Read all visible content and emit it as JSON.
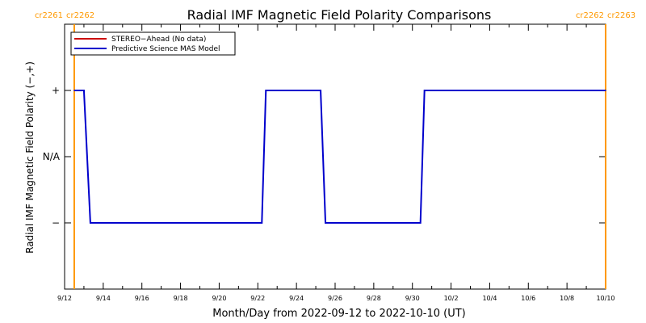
{
  "chart_data": {
    "type": "line",
    "title": "Radial IMF Magnetic Field Polarity Comparisons",
    "xlabel": "Month/Day from 2022-09-12 to 2022-10-10 (UT)",
    "ylabel": "Radial IMF Magnetic Field Polarity (−,+)",
    "xlim": [
      "2022-09-12",
      "2022-10-10"
    ],
    "ylim": [
      -2,
      2
    ],
    "x_ticks": [
      {
        "date": "2022-09-12",
        "label": "9/12"
      },
      {
        "date": "2022-09-14",
        "label": "9/14"
      },
      {
        "date": "2022-09-16",
        "label": "9/16"
      },
      {
        "date": "2022-09-18",
        "label": "9/18"
      },
      {
        "date": "2022-09-20",
        "label": "9/20"
      },
      {
        "date": "2022-09-22",
        "label": "9/22"
      },
      {
        "date": "2022-09-24",
        "label": "9/24"
      },
      {
        "date": "2022-09-26",
        "label": "9/26"
      },
      {
        "date": "2022-09-28",
        "label": "9/28"
      },
      {
        "date": "2022-09-30",
        "label": "9/30"
      },
      {
        "date": "2022-10-02",
        "label": "10/2"
      },
      {
        "date": "2022-10-04",
        "label": "10/4"
      },
      {
        "date": "2022-10-06",
        "label": "10/6"
      },
      {
        "date": "2022-10-08",
        "label": "10/8"
      },
      {
        "date": "2022-10-10",
        "label": "10/10"
      }
    ],
    "y_ticks": [
      {
        "value": 1,
        "label": "+"
      },
      {
        "value": 0,
        "label": "N/A"
      },
      {
        "value": -1,
        "label": "−"
      }
    ],
    "grid": false,
    "legend_position": "top-left",
    "series": [
      {
        "name": "STEREO−Ahead (No data)",
        "color": "#cc0000",
        "x": [],
        "y": []
      },
      {
        "name": "Predictive Science MAS Model",
        "color": "#0000cc",
        "x": [
          "2022-09-12T12:00",
          "2022-09-13T00:00",
          "2022-09-13T08:00",
          "2022-09-22T05:00",
          "2022-09-22T10:00",
          "2022-09-25T06:00",
          "2022-09-25T12:00",
          "2022-09-30T10:00",
          "2022-09-30T15:00",
          "2022-10-10T00:00"
        ],
        "y": [
          1,
          1,
          -1,
          -1,
          1,
          1,
          -1,
          -1,
          1,
          1
        ]
      }
    ],
    "carrington_markers": [
      {
        "date": "2022-09-12T12:00",
        "labels": [
          "cr2261",
          "cr2262"
        ],
        "color": "#ff9900"
      },
      {
        "date": "2022-10-10T00:00",
        "labels": [
          "cr2262",
          "cr2263"
        ],
        "color": "#ff9900"
      }
    ]
  }
}
